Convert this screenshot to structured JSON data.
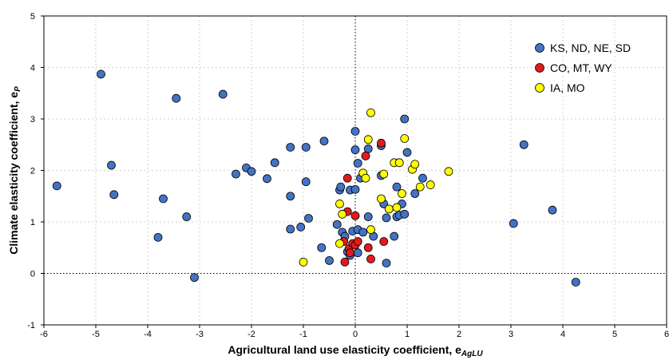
{
  "chart_data": {
    "type": "scatter",
    "xlabel": "Agricultural land use elasticity coefficient, e",
    "xlabel_sub": "AgLU",
    "ylabel": "Climate elasticity coefficient, e",
    "ylabel_sub": "P",
    "xlim": [
      -6,
      6
    ],
    "ylim": [
      -1,
      5
    ],
    "xticks": [
      -6,
      -5,
      -4,
      -3,
      -2,
      -1,
      0,
      1,
      2,
      3,
      4,
      5,
      6
    ],
    "yticks": [
      -1,
      0,
      1,
      2,
      3,
      4,
      5
    ],
    "grid": true,
    "zero_lines": true,
    "legend_position": "top-right",
    "series": [
      {
        "name": "KS, ND, NE, SD",
        "color": "#4472c4",
        "points": [
          [
            -5.75,
            1.7
          ],
          [
            -4.9,
            3.87
          ],
          [
            -4.7,
            2.1
          ],
          [
            -4.65,
            1.53
          ],
          [
            -3.7,
            1.45
          ],
          [
            -3.8,
            0.7
          ],
          [
            -3.45,
            3.4
          ],
          [
            -3.25,
            1.1
          ],
          [
            -3.1,
            -0.08
          ],
          [
            -2.55,
            3.48
          ],
          [
            -2.3,
            1.93
          ],
          [
            -2.1,
            2.05
          ],
          [
            -2.0,
            1.98
          ],
          [
            -1.7,
            1.84
          ],
          [
            -1.55,
            2.15
          ],
          [
            -1.25,
            2.45
          ],
          [
            -1.25,
            1.5
          ],
          [
            -1.25,
            0.86
          ],
          [
            -1.05,
            0.9
          ],
          [
            -0.95,
            2.45
          ],
          [
            -0.95,
            1.78
          ],
          [
            -0.9,
            1.07
          ],
          [
            -0.6,
            2.57
          ],
          [
            -0.65,
            0.5
          ],
          [
            -0.5,
            0.25
          ],
          [
            -0.35,
            0.95
          ],
          [
            -0.3,
            1.62
          ],
          [
            -0.28,
            1.68
          ],
          [
            -0.25,
            0.8
          ],
          [
            -0.2,
            0.72
          ],
          [
            -0.15,
            0.42
          ],
          [
            -0.1,
            0.35
          ],
          [
            -0.1,
            1.62
          ],
          [
            -0.05,
            0.82
          ],
          [
            0.0,
            2.76
          ],
          [
            0.0,
            2.4
          ],
          [
            0.0,
            1.63
          ],
          [
            0.05,
            0.85
          ],
          [
            0.05,
            0.4
          ],
          [
            0.05,
            2.14
          ],
          [
            0.1,
            1.85
          ],
          [
            0.15,
            0.8
          ],
          [
            0.25,
            2.42
          ],
          [
            0.25,
            1.1
          ],
          [
            0.35,
            0.72
          ],
          [
            0.5,
            2.48
          ],
          [
            0.5,
            1.9
          ],
          [
            0.55,
            1.35
          ],
          [
            0.6,
            0.2
          ],
          [
            0.6,
            1.08
          ],
          [
            0.75,
            0.72
          ],
          [
            0.8,
            1.1
          ],
          [
            0.8,
            1.68
          ],
          [
            0.85,
            1.13
          ],
          [
            0.9,
            1.35
          ],
          [
            0.95,
            3.0
          ],
          [
            0.95,
            1.15
          ],
          [
            1.0,
            2.35
          ],
          [
            1.15,
            1.55
          ],
          [
            1.3,
            1.85
          ],
          [
            3.05,
            0.97
          ],
          [
            3.25,
            2.5
          ],
          [
            3.8,
            1.23
          ],
          [
            4.25,
            -0.17
          ]
        ]
      },
      {
        "name": "CO, MT, WY",
        "color": "#e31a1c",
        "points": [
          [
            -0.2,
            0.22
          ],
          [
            -0.15,
            1.85
          ],
          [
            -0.15,
            1.2
          ],
          [
            -0.12,
            0.48
          ],
          [
            -0.05,
            0.58
          ],
          [
            -0.1,
            0.4
          ],
          [
            0.0,
            1.12
          ],
          [
            0.0,
            0.55
          ],
          [
            0.05,
            0.62
          ],
          [
            -0.22,
            0.62
          ],
          [
            0.2,
            2.28
          ],
          [
            0.25,
            0.5
          ],
          [
            0.3,
            0.28
          ],
          [
            0.5,
            2.53
          ],
          [
            0.55,
            0.62
          ]
        ]
      },
      {
        "name": "IA, MO",
        "color": "#ffff00",
        "points": [
          [
            -1.0,
            0.22
          ],
          [
            -0.3,
            1.35
          ],
          [
            -0.3,
            0.58
          ],
          [
            -0.25,
            1.15
          ],
          [
            0.15,
            1.95
          ],
          [
            0.2,
            1.85
          ],
          [
            0.25,
            2.6
          ],
          [
            0.3,
            3.12
          ],
          [
            0.3,
            0.85
          ],
          [
            0.5,
            1.45
          ],
          [
            0.55,
            1.93
          ],
          [
            0.65,
            1.25
          ],
          [
            0.75,
            2.15
          ],
          [
            0.8,
            1.28
          ],
          [
            0.85,
            2.15
          ],
          [
            0.9,
            1.55
          ],
          [
            0.95,
            2.62
          ],
          [
            1.1,
            2.02
          ],
          [
            1.15,
            2.12
          ],
          [
            1.25,
            1.68
          ],
          [
            1.45,
            1.72
          ],
          [
            1.8,
            1.98
          ]
        ]
      }
    ]
  }
}
